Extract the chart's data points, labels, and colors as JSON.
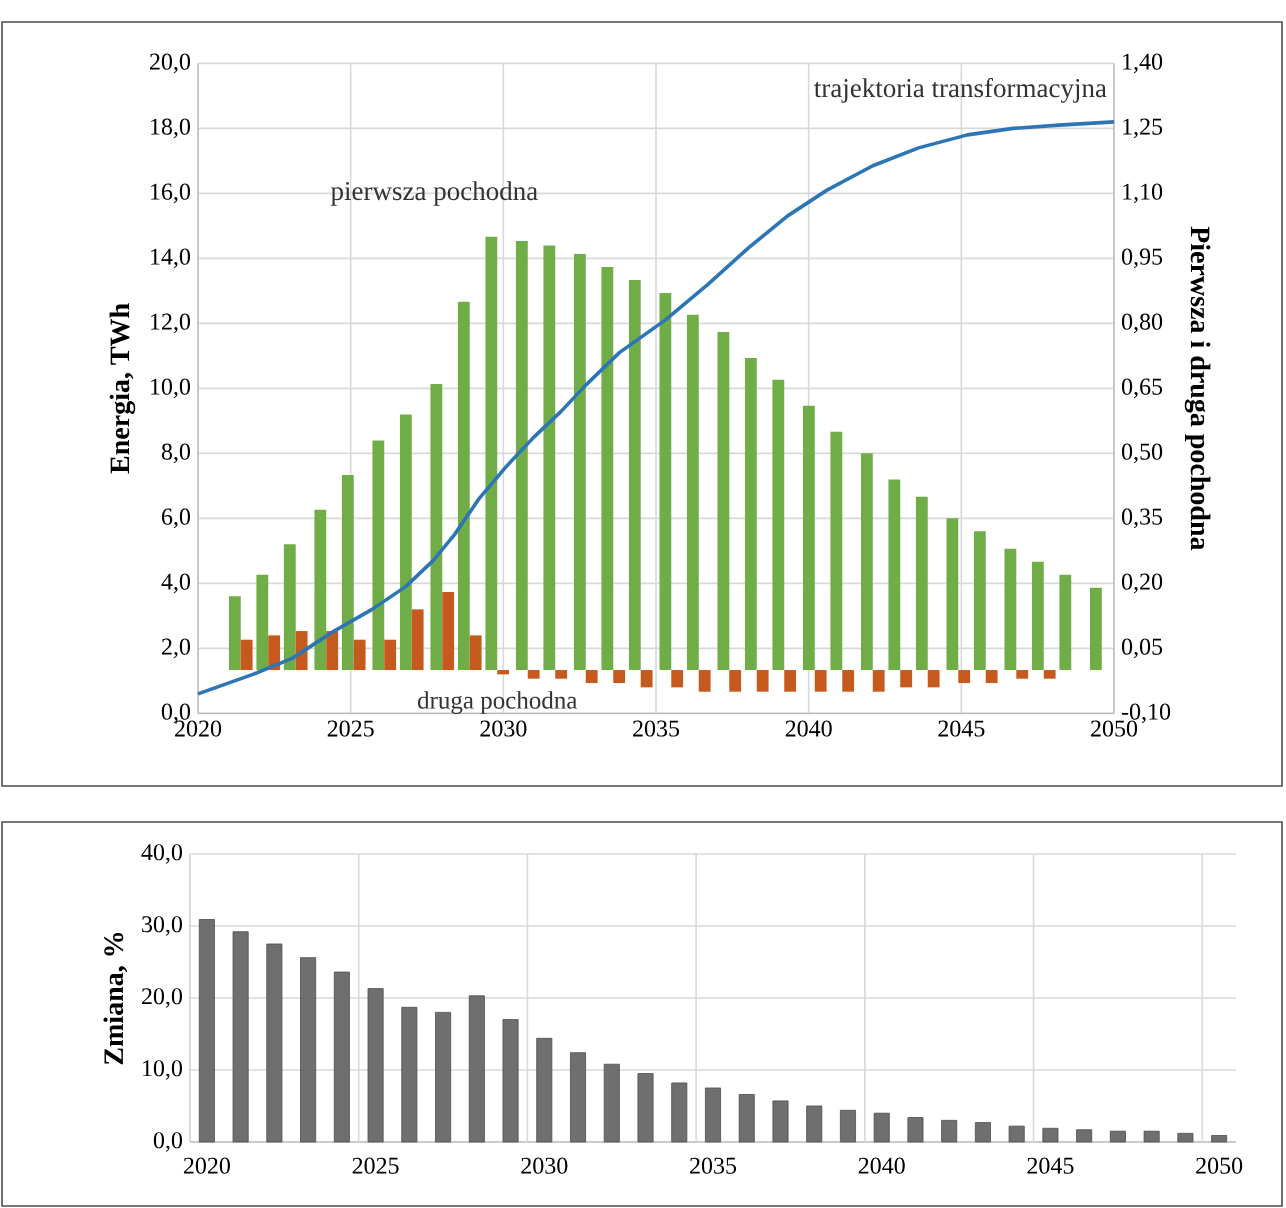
{
  "chart_data": [
    {
      "type": "bar",
      "xlim": [
        2020,
        2050
      ],
      "xticks": [
        2020,
        2025,
        2030,
        2035,
        2040,
        2045,
        2050
      ],
      "ylim": [
        0,
        20
      ],
      "yticks": [
        {
          "value": 0,
          "label": "0,0"
        },
        {
          "value": 2,
          "label": "2,0"
        },
        {
          "value": 4,
          "label": "4,0"
        },
        {
          "value": 6,
          "label": "6,0"
        },
        {
          "value": 8,
          "label": "8,0"
        },
        {
          "value": 10,
          "label": "10,0"
        },
        {
          "value": 12,
          "label": "12,0"
        },
        {
          "value": 14,
          "label": "14,0"
        },
        {
          "value": 16,
          "label": "16,0"
        },
        {
          "value": 18,
          "label": "18,0"
        },
        {
          "value": 20,
          "label": "20,0"
        }
      ],
      "y2lim": [
        -0.1,
        1.4
      ],
      "y2ticks": [
        {
          "value": -0.1,
          "label": "-0,10"
        },
        {
          "value": 0.05,
          "label": "0,05"
        },
        {
          "value": 0.2,
          "label": "0,20"
        },
        {
          "value": 0.35,
          "label": "0,35"
        },
        {
          "value": 0.5,
          "label": "0,50"
        },
        {
          "value": 0.65,
          "label": "0,65"
        },
        {
          "value": 0.8,
          "label": "0,80"
        },
        {
          "value": 0.95,
          "label": "0,95"
        },
        {
          "value": 1.1,
          "label": "1,10"
        },
        {
          "value": 1.25,
          "label": "1,25"
        },
        {
          "value": 1.4,
          "label": "1,40"
        }
      ],
      "ylabel": "Energia, TWh",
      "y2label": "Pierwsza i druga pochodna",
      "grid": true,
      "series": [
        {
          "name": "trajektoria transformacyjna",
          "type": "line",
          "color": "#2e75b6",
          "x": [
            2020,
            2021.8,
            2023.1,
            2024.4,
            2025.7,
            2026.8,
            2027.7,
            2028.4,
            2029.2,
            2030.1,
            2031,
            2031.9,
            2032.7,
            2033.8,
            2035.3,
            2036.7,
            2038,
            2039.3,
            2040.6,
            2042.1,
            2043.6,
            2045.2,
            2046.7,
            2048.2,
            2050
          ],
          "values": [
            0.6,
            1.2,
            1.7,
            2.5,
            3.2,
            3.9,
            4.7,
            5.5,
            6.6,
            7.6,
            8.5,
            9.3,
            10.1,
            11.1,
            12.1,
            13.2,
            14.3,
            15.3,
            16.1,
            16.85,
            17.4,
            17.8,
            18.0,
            18.1,
            18.2
          ]
        },
        {
          "name": "pierwsza pochodna",
          "color": "#70ad47",
          "axis": "y2",
          "x": [
            2021.4,
            2022.3,
            2023.2,
            2024.2,
            2025.1,
            2026.1,
            2027.0,
            2028.0,
            2028.9,
            2029.8,
            2030.8,
            2031.7,
            2032.7,
            2033.6,
            2034.5,
            2035.5,
            2036.4,
            2037.4,
            2038.3,
            2039.2,
            2040.2,
            2041.1,
            2042.1,
            2043.0,
            2043.9,
            2044.9,
            2045.8,
            2046.8,
            2047.7,
            2048.6,
            2049.6
          ],
          "values": [
            0.17,
            0.22,
            0.29,
            0.37,
            0.45,
            0.53,
            0.59,
            0.66,
            0.85,
            1.0,
            0.99,
            0.98,
            0.96,
            0.93,
            0.9,
            0.87,
            0.82,
            0.78,
            0.72,
            0.67,
            0.61,
            0.55,
            0.5,
            0.44,
            0.4,
            0.35,
            0.32,
            0.28,
            0.25,
            0.22,
            0.19
          ]
        },
        {
          "name": "druga pochodna",
          "color": "#c65a1e",
          "axis": "y2",
          "x": [
            2021.4,
            2022.3,
            2023.2,
            2024.2,
            2025.1,
            2026.1,
            2027.0,
            2028.0,
            2028.9,
            2029.8,
            2030.8,
            2031.7,
            2032.7,
            2033.6,
            2034.5,
            2035.5,
            2036.4,
            2037.4,
            2038.3,
            2039.2,
            2040.2,
            2041.1,
            2042.1,
            2043.0,
            2043.9,
            2044.9,
            2045.8,
            2046.8,
            2047.7
          ],
          "values": [
            0.07,
            0.08,
            0.09,
            0.09,
            0.07,
            0.07,
            0.14,
            0.18,
            0.08,
            -0.01,
            -0.02,
            -0.02,
            -0.03,
            -0.03,
            -0.04,
            -0.04,
            -0.05,
            -0.05,
            -0.05,
            -0.05,
            -0.05,
            -0.05,
            -0.05,
            -0.04,
            -0.04,
            -0.03,
            -0.03,
            -0.02,
            -0.02
          ]
        }
      ]
    },
    {
      "type": "bar",
      "categories": [
        "2020",
        null,
        null,
        null,
        null,
        "2025",
        null,
        null,
        null,
        null,
        "2030",
        null,
        null,
        null,
        null,
        "2035",
        null,
        null,
        null,
        null,
        "2040",
        null,
        null,
        null,
        null,
        "2045",
        null,
        null,
        null,
        null,
        "2050"
      ],
      "values": [
        30.9,
        29.2,
        27.5,
        25.6,
        23.6,
        21.3,
        18.7,
        18.0,
        20.3,
        17.0,
        14.4,
        12.4,
        10.8,
        9.5,
        8.2,
        7.5,
        6.6,
        5.7,
        5.0,
        4.4,
        4.0,
        3.4,
        3.0,
        2.7,
        2.2,
        1.9,
        1.7,
        1.5,
        1.5,
        1.2,
        0.9
      ],
      "color": "#6f6f6f",
      "ylim": [
        0,
        40
      ],
      "yticks": [
        {
          "value": 0,
          "label": "0,0"
        },
        {
          "value": 10,
          "label": "10,0"
        },
        {
          "value": 20,
          "label": "20,0"
        },
        {
          "value": 30,
          "label": "30,0"
        },
        {
          "value": 40,
          "label": "40,0"
        }
      ],
      "ylabel": "Zmiana, %",
      "grid": true
    }
  ]
}
